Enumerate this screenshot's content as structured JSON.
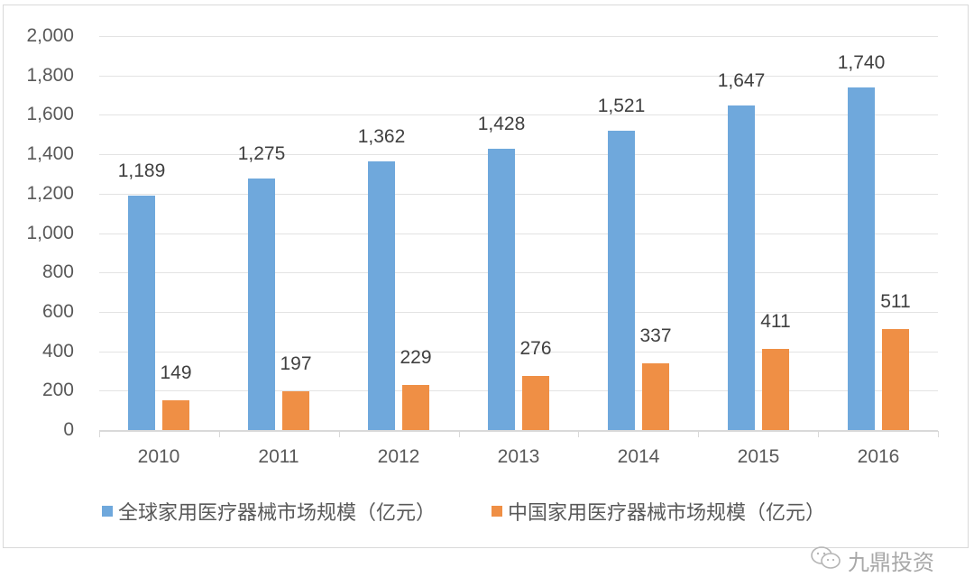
{
  "chart_data": {
    "type": "bar",
    "title": "",
    "xlabel": "",
    "ylabel": "",
    "categories": [
      "2010",
      "2011",
      "2012",
      "2013",
      "2014",
      "2015",
      "2016"
    ],
    "series": [
      {
        "name": "全球家用医疗器械市场规模（亿元）",
        "color": "#6fa8dc",
        "values": [
          1189,
          1275,
          1362,
          1428,
          1521,
          1647,
          1740
        ]
      },
      {
        "name": "中国家用医疗器械市场规模（亿元）",
        "color": "#ef8f45",
        "values": [
          149,
          197,
          229,
          276,
          337,
          411,
          511
        ]
      }
    ],
    "data_labels": {
      "global": [
        "1,189",
        "1,275",
        "1,362",
        "1,428",
        "1,521",
        "1,647",
        "1,740"
      ],
      "china": [
        "149",
        "197",
        "229",
        "276",
        "337",
        "411",
        "511"
      ]
    },
    "ylim": [
      0,
      2000
    ],
    "yticks": [
      "0",
      "200",
      "400",
      "600",
      "800",
      "1,000",
      "1,200",
      "1,400",
      "1,600",
      "1,800",
      "2,000"
    ],
    "grid": true,
    "legend_position": "bottom"
  },
  "legend": {
    "items": [
      {
        "label": "全球家用医疗器械市场规模（亿元）",
        "color": "#6fa8dc"
      },
      {
        "label": "中国家用医疗器械市场规模（亿元）",
        "color": "#ef8f45"
      }
    ]
  },
  "watermark": {
    "icon": "wechat-icon",
    "text": "九鼎投资"
  }
}
